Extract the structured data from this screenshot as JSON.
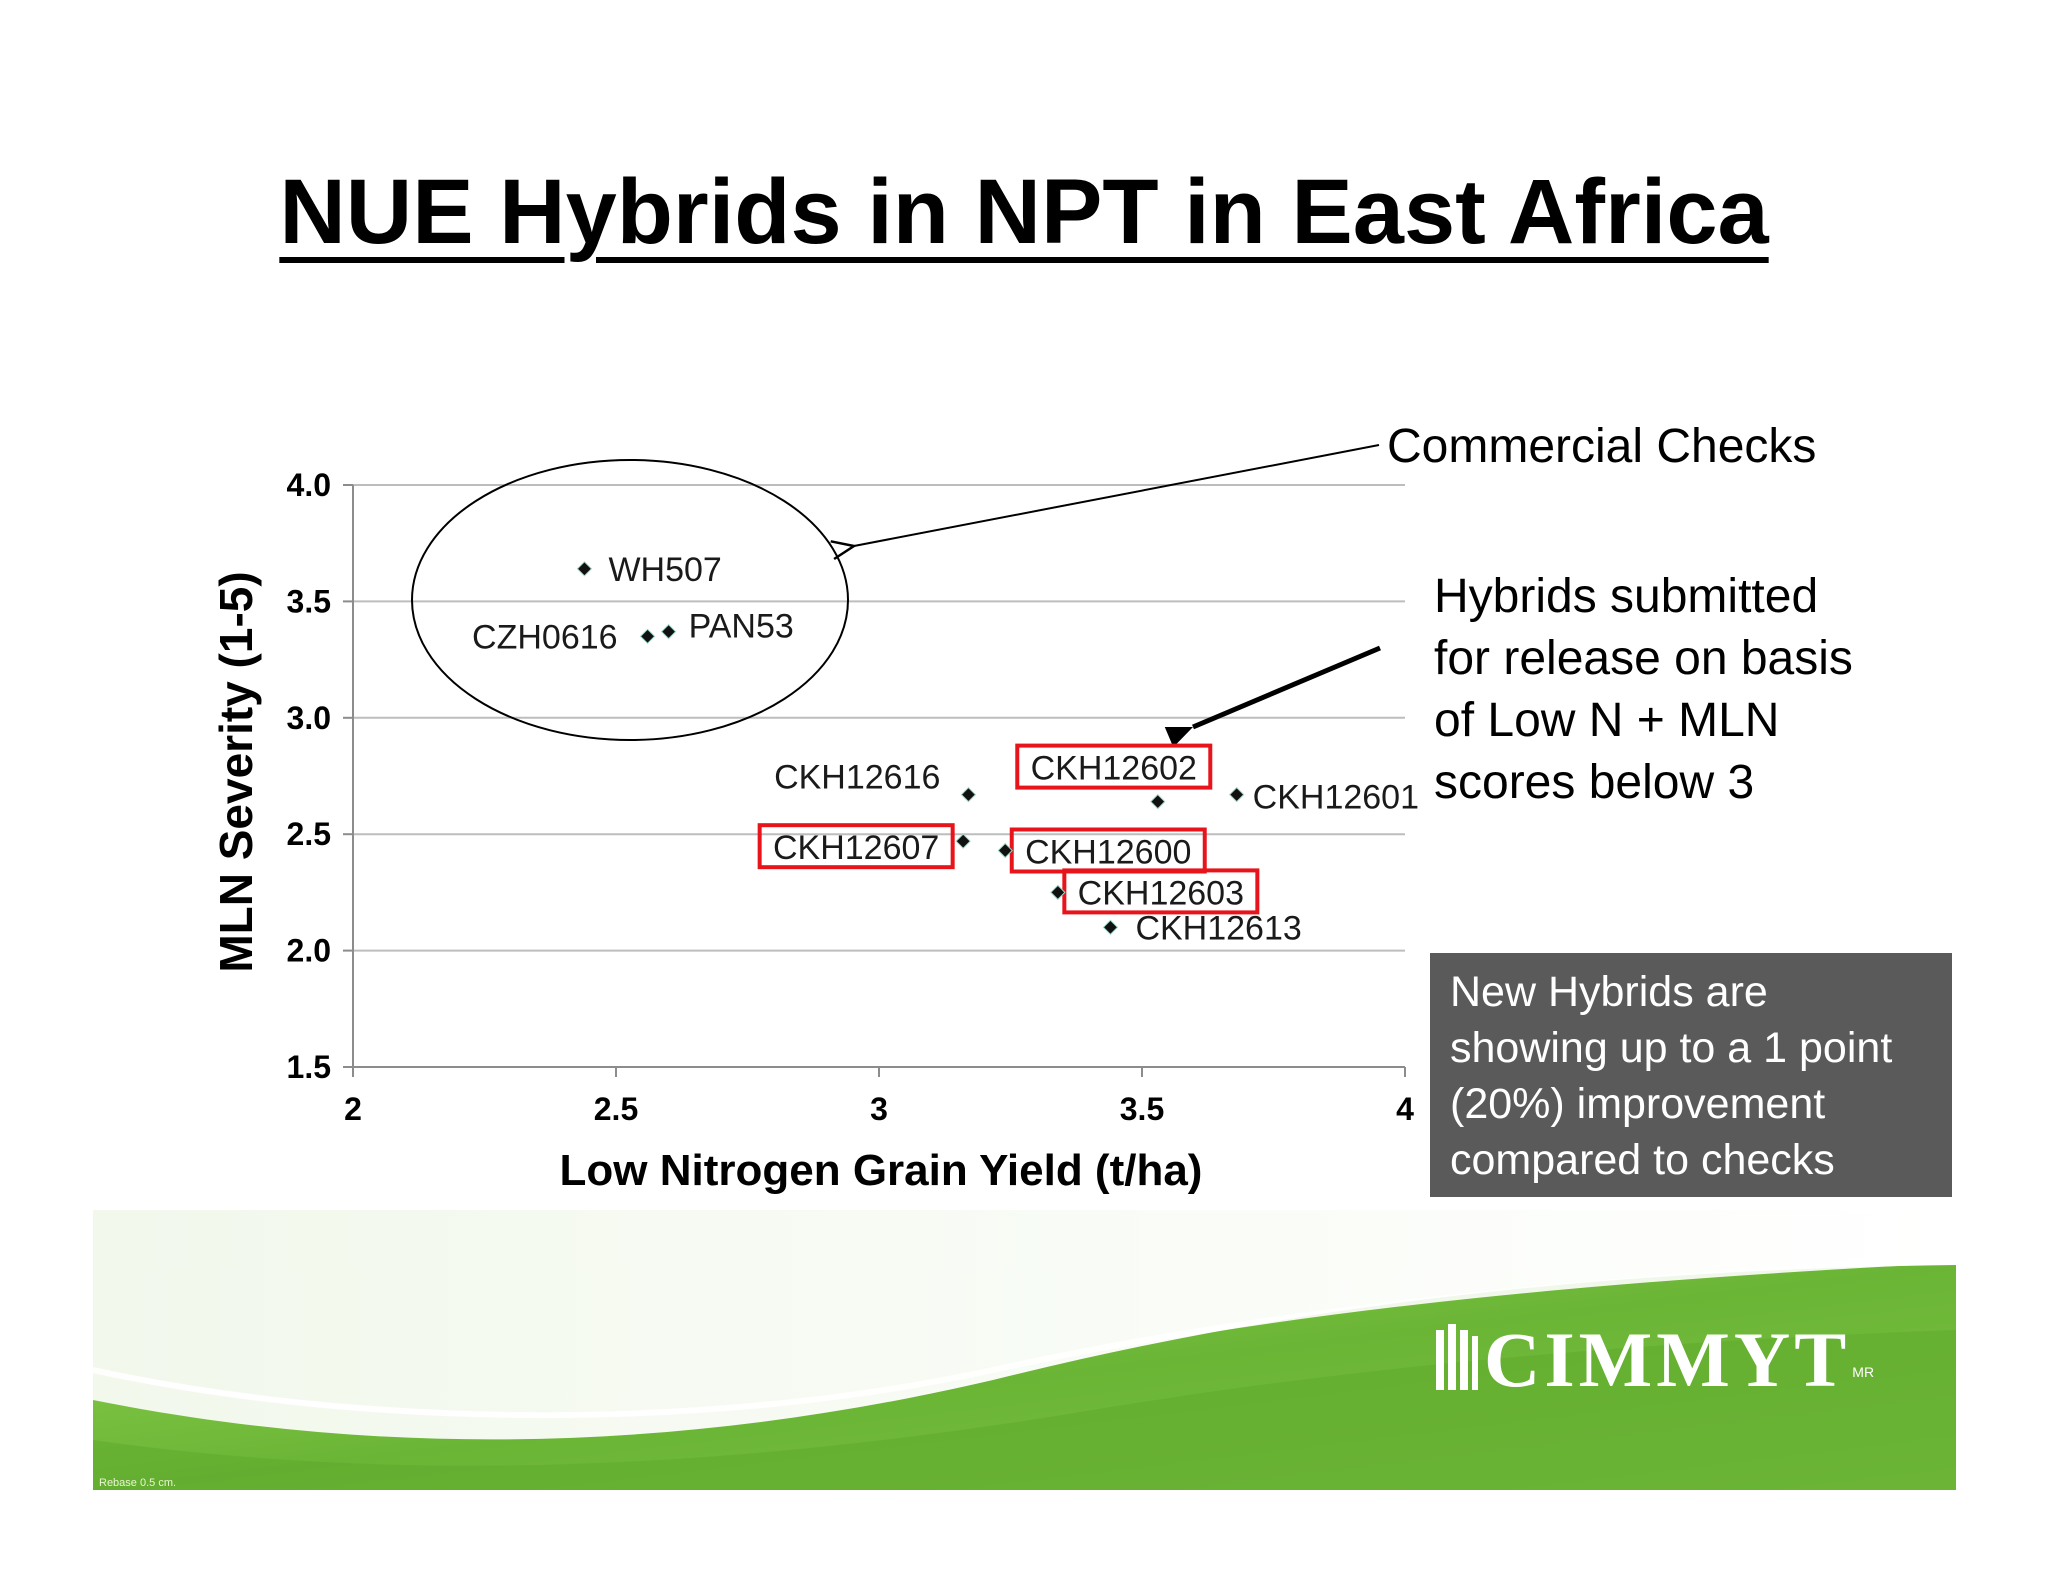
{
  "slide": {
    "title": "NUE Hybrids in NPT in East Africa",
    "callouts": {
      "commercial": "Commercial Checks",
      "release_lines": [
        "Hybrids submitted",
        "for release on basis",
        "of Low N + MLN",
        "scores below 3"
      ],
      "improvement_lines": [
        "New Hybrids are",
        "showing up to a 1 point",
        "(20%) improvement",
        "compared to checks"
      ]
    },
    "logo": {
      "text": "CIMMYT",
      "mark": "MR"
    },
    "footnote": "Rebase 0.5 cm."
  },
  "colors": {
    "highlight_box": "#e8141b",
    "marker": "#111111",
    "gridline": "#bdbdbd",
    "banner_green": "#7cc242",
    "note_box": "#5a5a5a"
  },
  "chart_data": {
    "type": "scatter",
    "title": "",
    "xlabel": "Low Nitrogen Grain Yield (t/ha)",
    "ylabel": "MLN Severity (1-5)",
    "xlim": [
      2,
      4
    ],
    "ylim": [
      1.5,
      4.0
    ],
    "x_ticks": [
      "2",
      "2.5",
      "3",
      "3.5",
      "4"
    ],
    "y_ticks": [
      "1.5",
      "2.0",
      "2.5",
      "3.0",
      "3.5",
      "4.0"
    ],
    "grid": "horizontal",
    "points": [
      {
        "label": "WH507",
        "x": 2.44,
        "y": 3.64,
        "group": "commercial check",
        "highlighted": false
      },
      {
        "label": "CZH0616",
        "x": 2.56,
        "y": 3.35,
        "group": "commercial check",
        "highlighted": false
      },
      {
        "label": "PAN53",
        "x": 2.6,
        "y": 3.37,
        "group": "commercial check",
        "highlighted": false
      },
      {
        "label": "CKH12616",
        "x": 3.17,
        "y": 2.67,
        "group": "new hybrid",
        "highlighted": false
      },
      {
        "label": "CKH12602",
        "x": 3.53,
        "y": 2.64,
        "group": "new hybrid",
        "highlighted": true
      },
      {
        "label": "CKH12601",
        "x": 3.68,
        "y": 2.67,
        "group": "new hybrid",
        "highlighted": false
      },
      {
        "label": "CKH12607",
        "x": 3.16,
        "y": 2.47,
        "group": "new hybrid",
        "highlighted": true
      },
      {
        "label": "CKH12600",
        "x": 3.24,
        "y": 2.43,
        "group": "new hybrid",
        "highlighted": true
      },
      {
        "label": "CKH12603",
        "x": 3.34,
        "y": 2.25,
        "group": "new hybrid",
        "highlighted": true
      },
      {
        "label": "CKH12613",
        "x": 3.44,
        "y": 2.1,
        "group": "new hybrid",
        "highlighted": false
      }
    ]
  }
}
